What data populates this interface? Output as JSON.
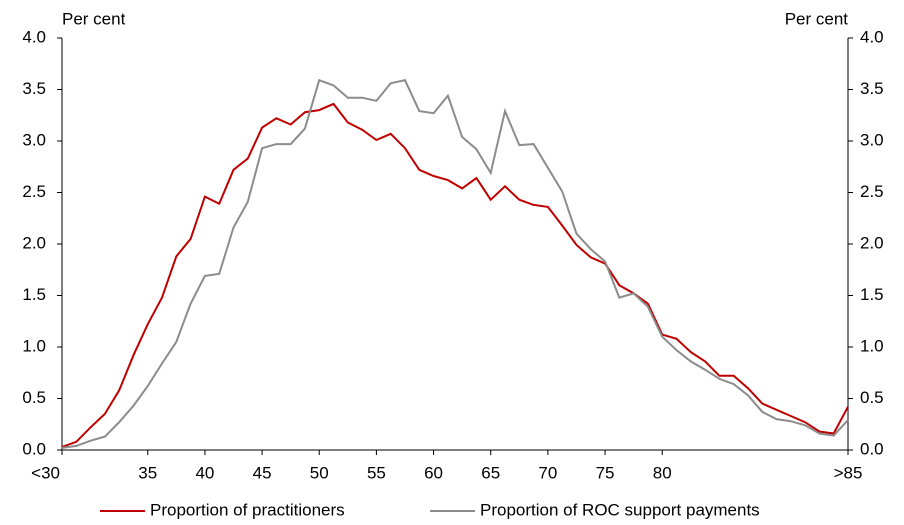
{
  "chart_data": {
    "type": "line",
    "y_label": "Per cent",
    "y2_label": "Per cent",
    "categories": [
      "<30",
      null,
      null,
      null,
      null,
      null,
      "35",
      null,
      null,
      null,
      "40",
      null,
      null,
      null,
      "45",
      null,
      null,
      null,
      "50",
      null,
      null,
      null,
      "55",
      null,
      null,
      null,
      "60",
      null,
      null,
      null,
      "65",
      null,
      null,
      null,
      "70",
      null,
      null,
      null,
      "75",
      null,
      null,
      null,
      "80",
      null,
      null,
      null,
      null,
      null,
      null,
      null,
      null,
      null,
      null,
      null,
      null,
      ">85"
    ],
    "series": [
      {
        "name": "Proportion of practitioners",
        "color": "#c00000",
        "values": [
          0.03,
          0.08,
          0.22,
          0.35,
          0.58,
          0.92,
          1.22,
          1.48,
          1.88,
          2.05,
          2.46,
          2.39,
          2.72,
          2.83,
          3.13,
          3.22,
          3.16,
          3.28,
          3.3,
          3.36,
          3.18,
          3.11,
          3.01,
          3.07,
          2.93,
          2.72,
          2.66,
          2.62,
          2.54,
          2.64,
          2.43,
          2.56,
          2.43,
          2.38,
          2.36,
          2.18,
          1.99,
          1.87,
          1.81,
          1.6,
          1.52,
          1.42,
          1.12,
          1.08,
          0.95,
          0.86,
          0.72,
          0.72,
          0.6,
          0.45,
          0.39,
          0.33,
          0.27,
          0.18,
          0.16,
          0.42
        ]
      },
      {
        "name": "Proportion of ROC support payments",
        "color": "#8c8c8c",
        "values": [
          0.02,
          0.04,
          0.09,
          0.13,
          0.27,
          0.43,
          0.62,
          0.84,
          1.05,
          1.42,
          1.69,
          1.71,
          2.16,
          2.41,
          2.93,
          2.97,
          2.97,
          3.12,
          3.59,
          3.54,
          3.42,
          3.42,
          3.39,
          3.56,
          3.59,
          3.29,
          3.27,
          3.44,
          3.04,
          2.92,
          2.69,
          3.29,
          2.96,
          2.97,
          2.74,
          2.51,
          2.1,
          1.95,
          1.83,
          1.48,
          1.52,
          1.39,
          1.1,
          0.97,
          0.86,
          0.78,
          0.69,
          0.64,
          0.53,
          0.37,
          0.3,
          0.28,
          0.24,
          0.16,
          0.14,
          0.29
        ]
      }
    ],
    "ylim": [
      0,
      4
    ],
    "yticks": [
      {
        "value": 0,
        "label": "0.0"
      },
      {
        "value": 0.5,
        "label": "0.5"
      },
      {
        "value": 1,
        "label": "1.0"
      },
      {
        "value": 1.5,
        "label": "1.5"
      },
      {
        "value": 2,
        "label": "2.0"
      },
      {
        "value": 2.5,
        "label": "2.5"
      },
      {
        "value": 3,
        "label": "3.0"
      },
      {
        "value": 3.5,
        "label": "3.5"
      },
      {
        "value": 4,
        "label": "4.0"
      }
    ],
    "y2lim": [
      0,
      4
    ],
    "y2ticks": [
      {
        "value": 0,
        "label": "0.0"
      },
      {
        "value": 0.5,
        "label": "0.5"
      },
      {
        "value": 1,
        "label": "1.0"
      },
      {
        "value": 1.5,
        "label": "1.5"
      },
      {
        "value": 2,
        "label": "2.0"
      },
      {
        "value": 2.5,
        "label": "2.5"
      },
      {
        "value": 3,
        "label": "3.0"
      },
      {
        "value": 3.5,
        "label": "3.5"
      },
      {
        "value": 4,
        "label": "4.0"
      }
    ],
    "grid": false,
    "legend": "bottom"
  }
}
